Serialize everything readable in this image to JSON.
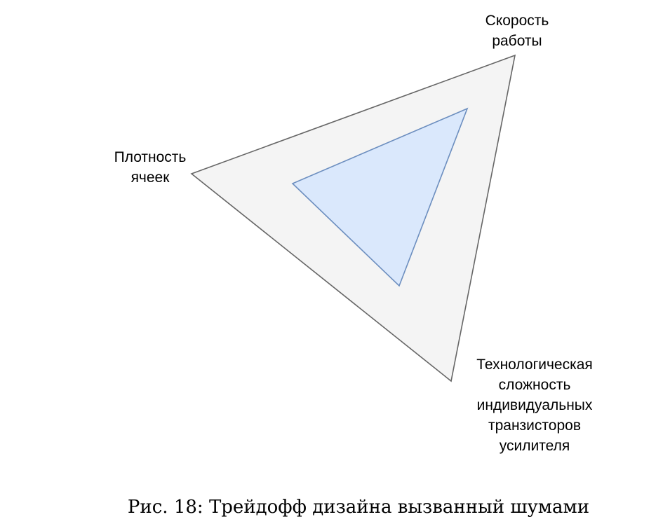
{
  "diagram": {
    "type": "triangle-tradeoff",
    "outer_fill": "#f4f4f4",
    "outer_stroke": "#666666",
    "inner_fill": "#dae8fc",
    "inner_stroke": "#6c8ebf",
    "vertices": {
      "speed": {
        "lines": [
          "Скорость",
          "работы"
        ]
      },
      "density": {
        "lines": [
          "Плотность",
          "ячеек"
        ]
      },
      "complexity": {
        "lines": [
          "Технологическая",
          "сложность",
          "индивидуальных",
          "транзисторов",
          "усилителя"
        ]
      }
    }
  },
  "caption": "Рис. 18: Трейдофф дизайна вызванный шумами"
}
